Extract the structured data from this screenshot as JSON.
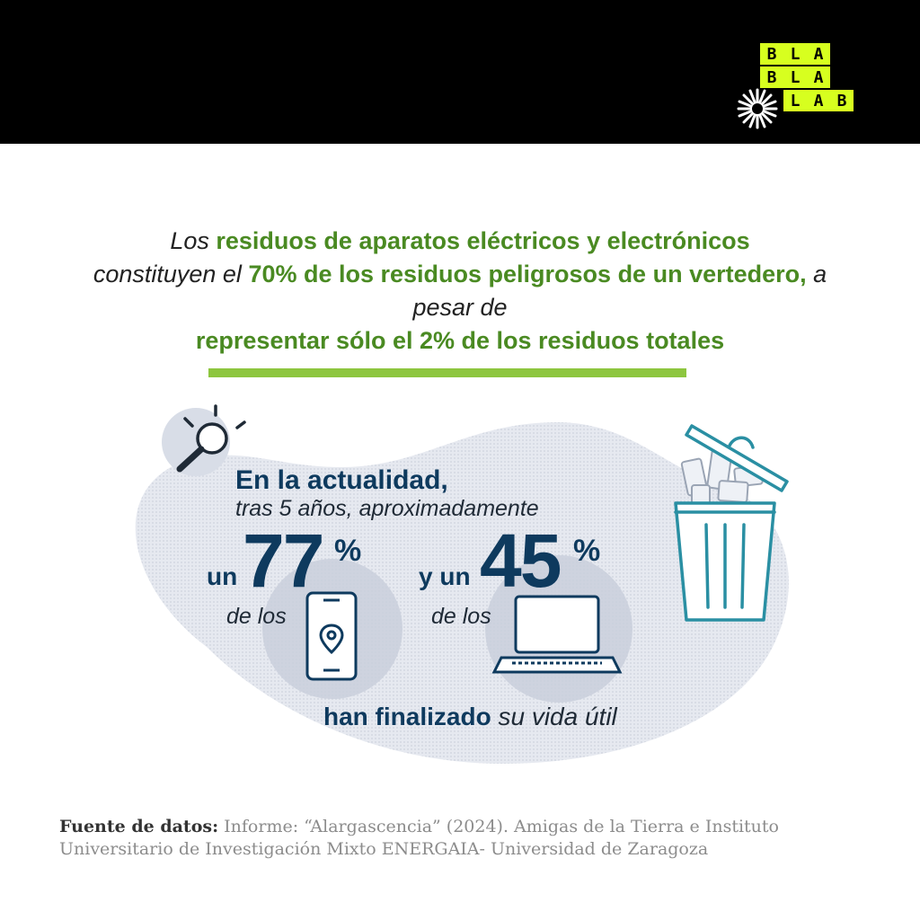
{
  "logo": {
    "rows": [
      [
        "B",
        "L",
        "A"
      ],
      [
        "B",
        "L",
        "A"
      ],
      [
        "L",
        "A",
        "B"
      ]
    ],
    "color": "#d7ff1f"
  },
  "headline": {
    "p1": "Los ",
    "p2": "residuos de aparatos eléctricos y electrónicos",
    "p3": "constituyen el ",
    "p4": "70% de los residuos peligrosos de un vertedero,",
    "p5": " a pesar de ",
    "p6": "representar sólo el 2% de los residuos totales"
  },
  "stats": {
    "intro_bold": "En la actualidad,",
    "intro_italic": "tras 5 años, aproximadamente",
    "phones": {
      "prefix": "un",
      "value": "77",
      "unit": "%",
      "suffix": "de los",
      "icon": "smartphone-icon"
    },
    "laptops": {
      "prefix": "y un",
      "value": "45",
      "unit": "%",
      "suffix": "de los",
      "icon": "laptop-icon"
    },
    "ending_bold": "han finalizado",
    "ending_italic": " su vida útil"
  },
  "icons": {
    "search": "magnifier-icon",
    "bin": "trash-bin-icon"
  },
  "source": {
    "label": "Fuente de datos:",
    "text": " Informe: “Alargascencia” (2024). Amigas de la Tierra e Instituto Universitario de Investigación Mixto ENERGAIA- Universidad de Zaragoza"
  },
  "colors": {
    "green": "#4a8a22",
    "accent": "#8dc63f",
    "navy": "#0e3a5e",
    "blob": "#e3e6ee"
  }
}
